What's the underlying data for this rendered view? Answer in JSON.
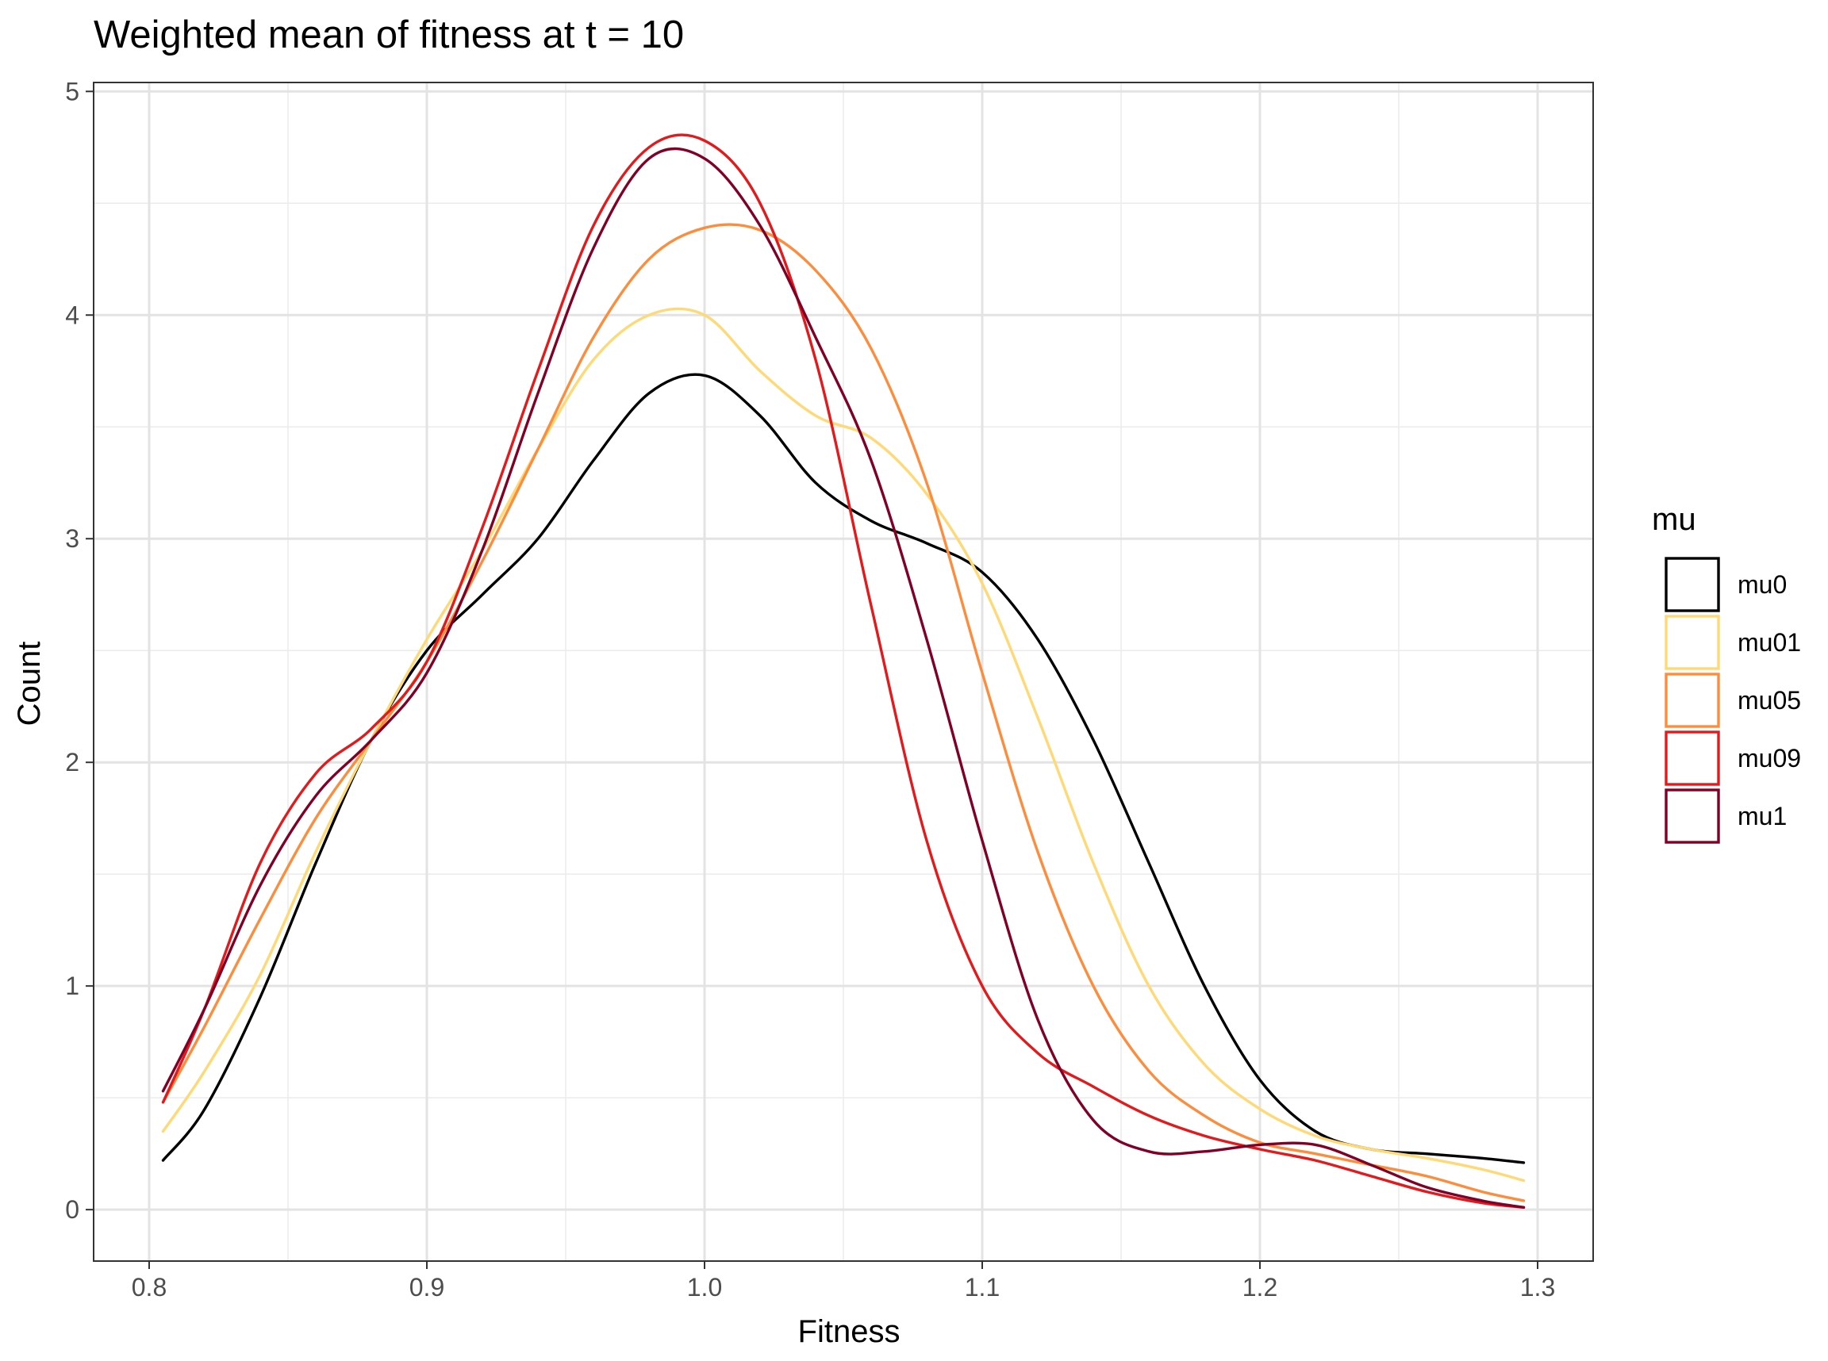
{
  "chart_data": {
    "type": "line",
    "title": "Weighted mean of fitness at t = 10",
    "xlabel": "Fitness",
    "ylabel": "Count",
    "xlim": [
      0.78,
      1.32
    ],
    "ylim": [
      -0.23,
      5.04
    ],
    "x_ticks": [
      "0.8",
      "0.9",
      "1.0",
      "1.1",
      "1.2",
      "1.3"
    ],
    "y_ticks": [
      "0",
      "1",
      "2",
      "3",
      "4",
      "5"
    ],
    "grid": true,
    "legend": {
      "title": "mu",
      "placement": "right"
    },
    "series": [
      {
        "name": "mu0",
        "color": "#000000",
        "x": [
          0.805,
          0.82,
          0.84,
          0.86,
          0.88,
          0.9,
          0.92,
          0.94,
          0.96,
          0.98,
          1.0,
          1.02,
          1.04,
          1.06,
          1.08,
          1.1,
          1.12,
          1.14,
          1.16,
          1.18,
          1.2,
          1.22,
          1.24,
          1.26,
          1.28,
          1.295
        ],
        "y": [
          0.22,
          0.45,
          0.95,
          1.55,
          2.1,
          2.5,
          2.75,
          3.0,
          3.35,
          3.65,
          3.73,
          3.55,
          3.25,
          3.08,
          2.98,
          2.85,
          2.55,
          2.1,
          1.55,
          1.0,
          0.58,
          0.35,
          0.27,
          0.25,
          0.23,
          0.21
        ]
      },
      {
        "name": "mu01",
        "color": "#FED976",
        "x": [
          0.805,
          0.82,
          0.84,
          0.86,
          0.88,
          0.9,
          0.92,
          0.94,
          0.96,
          0.98,
          1.0,
          1.02,
          1.04,
          1.06,
          1.08,
          1.1,
          1.12,
          1.14,
          1.16,
          1.18,
          1.2,
          1.22,
          1.24,
          1.26,
          1.28,
          1.295
        ],
        "y": [
          0.35,
          0.62,
          1.05,
          1.6,
          2.1,
          2.55,
          2.95,
          3.4,
          3.8,
          4.0,
          4.0,
          3.75,
          3.55,
          3.45,
          3.2,
          2.8,
          2.2,
          1.55,
          1.0,
          0.65,
          0.45,
          0.33,
          0.27,
          0.23,
          0.18,
          0.13
        ]
      },
      {
        "name": "mu05",
        "color": "#FD8D3C",
        "x": [
          0.805,
          0.82,
          0.84,
          0.86,
          0.88,
          0.9,
          0.92,
          0.94,
          0.96,
          0.98,
          1.0,
          1.02,
          1.04,
          1.06,
          1.08,
          1.1,
          1.12,
          1.14,
          1.16,
          1.18,
          1.2,
          1.22,
          1.24,
          1.26,
          1.28,
          1.295
        ],
        "y": [
          0.48,
          0.82,
          1.3,
          1.75,
          2.1,
          2.45,
          2.9,
          3.4,
          3.9,
          4.25,
          4.39,
          4.38,
          4.2,
          3.85,
          3.25,
          2.4,
          1.6,
          1.0,
          0.62,
          0.42,
          0.3,
          0.25,
          0.2,
          0.15,
          0.08,
          0.04
        ]
      },
      {
        "name": "mu09",
        "color": "#E31A1C",
        "x": [
          0.805,
          0.82,
          0.84,
          0.86,
          0.88,
          0.9,
          0.92,
          0.94,
          0.96,
          0.98,
          1.0,
          1.02,
          1.04,
          1.06,
          1.08,
          1.1,
          1.12,
          1.14,
          1.16,
          1.18,
          1.2,
          1.22,
          1.24,
          1.26,
          1.28,
          1.295
        ],
        "y": [
          0.48,
          0.9,
          1.55,
          1.95,
          2.15,
          2.45,
          3.05,
          3.75,
          4.4,
          4.75,
          4.78,
          4.5,
          3.8,
          2.7,
          1.65,
          1.0,
          0.7,
          0.55,
          0.42,
          0.33,
          0.27,
          0.22,
          0.15,
          0.08,
          0.03,
          0.01
        ]
      },
      {
        "name": "mu1",
        "color": "#800026",
        "x": [
          0.805,
          0.82,
          0.84,
          0.86,
          0.88,
          0.9,
          0.92,
          0.94,
          0.96,
          0.98,
          1.0,
          1.02,
          1.04,
          1.06,
          1.08,
          1.1,
          1.12,
          1.14,
          1.16,
          1.18,
          1.2,
          1.22,
          1.24,
          1.26,
          1.28,
          1.295
        ],
        "y": [
          0.53,
          0.9,
          1.45,
          1.85,
          2.1,
          2.4,
          2.95,
          3.65,
          4.3,
          4.7,
          4.7,
          4.4,
          3.9,
          3.35,
          2.55,
          1.65,
          0.85,
          0.4,
          0.26,
          0.26,
          0.29,
          0.29,
          0.2,
          0.1,
          0.04,
          0.01
        ]
      }
    ]
  }
}
